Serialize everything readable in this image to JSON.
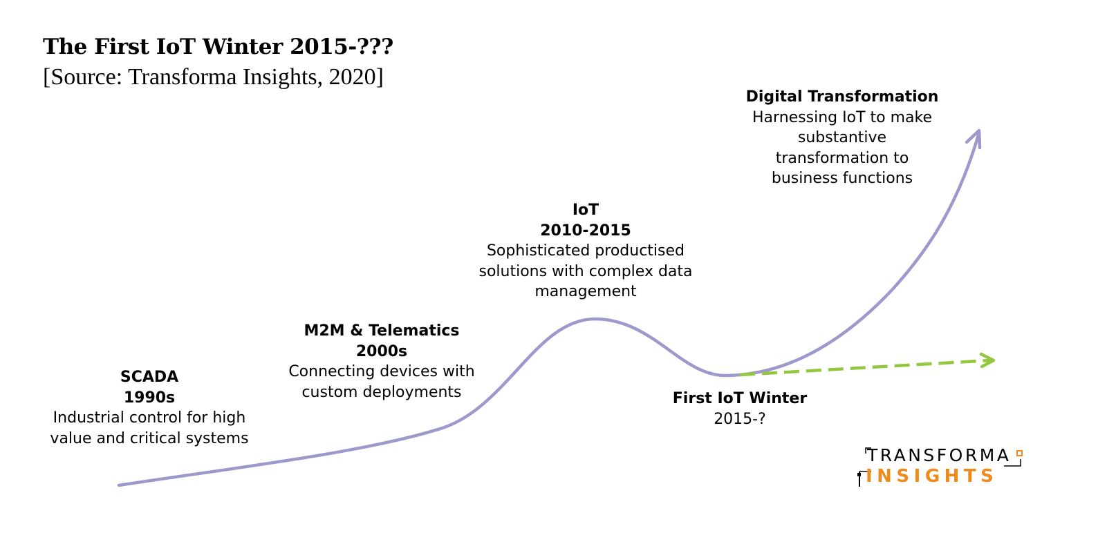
{
  "title": "The First IoT Winter 2015-???",
  "subtitle": "[Source: Transforma Insights, 2020]",
  "stages": [
    {
      "heading": "SCADA",
      "period": "1990s",
      "lines": [
        "Industrial control for high",
        "value and critical systems"
      ]
    },
    {
      "heading": "M2M & Telematics",
      "period": "2000s",
      "lines": [
        "Connecting devices with",
        "custom deployments"
      ]
    },
    {
      "heading": "IoT",
      "period": "2010-2015",
      "lines": [
        "Sophisticated productised",
        "solutions with complex data",
        "management"
      ]
    },
    {
      "heading": "First IoT Winter",
      "period": "2015-?",
      "lines": []
    },
    {
      "heading": "Digital Transformation",
      "period": "",
      "lines": [
        "Harnessing IoT to make",
        "substantive",
        "transformation to",
        "business functions"
      ]
    }
  ],
  "logo": {
    "line1": "TRANSFORMA",
    "line2": "INSIGHTS"
  },
  "colors": {
    "main_curve": "#9d99cc",
    "winter_arrow": "#93c83e",
    "logo_accent": "#f08a1c"
  }
}
